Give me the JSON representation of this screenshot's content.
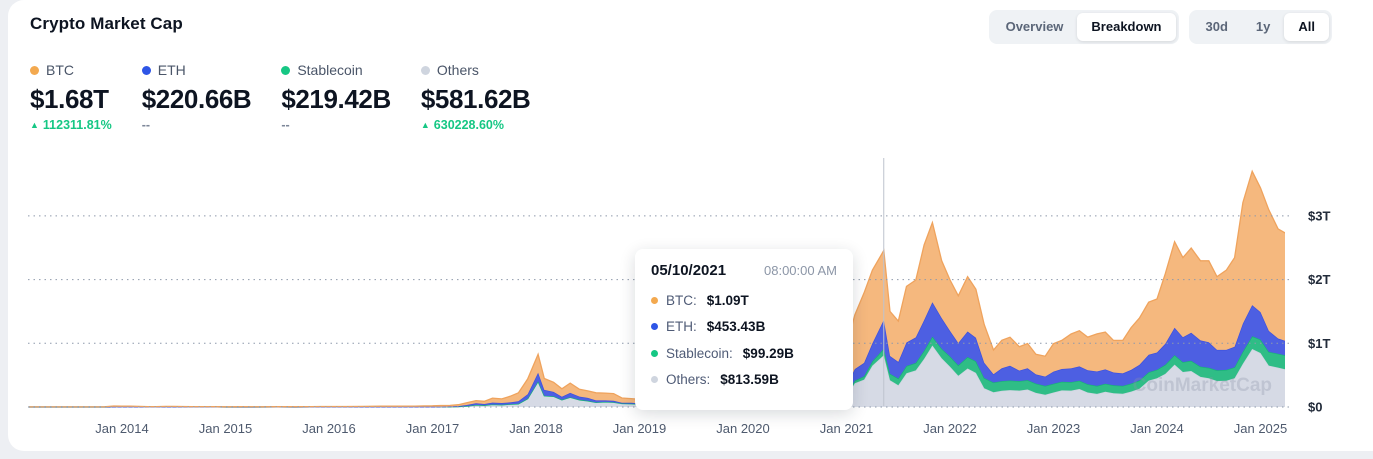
{
  "header": {
    "title": "Crypto Market Cap"
  },
  "view_toggle": {
    "overview": "Overview",
    "breakdown": "Breakdown",
    "selected": "Breakdown"
  },
  "range_toggle": {
    "d30": "30d",
    "y1": "1y",
    "all": "All",
    "selected": "All"
  },
  "stats": [
    {
      "id": "btc",
      "label": "BTC",
      "value": "$1.68T",
      "change": "112311.81%",
      "direction": "up",
      "color": "#f3a94f"
    },
    {
      "id": "eth",
      "label": "ETH",
      "value": "$220.66B",
      "change": "--",
      "direction": "none",
      "color": "#2e55e6"
    },
    {
      "id": "stablecoin",
      "label": "Stablecoin",
      "value": "$219.42B",
      "change": "--",
      "direction": "none",
      "color": "#16c784"
    },
    {
      "id": "others",
      "label": "Others",
      "value": "$581.62B",
      "change": "630228.60%",
      "direction": "up",
      "color": "#cfd5df"
    }
  ],
  "tooltip": {
    "date": "05/10/2021",
    "time": "08:00:00 AM",
    "rows": [
      {
        "id": "btc",
        "label": "BTC:",
        "value": "$1.09T",
        "color": "#f3a94f"
      },
      {
        "id": "eth",
        "label": "ETH:",
        "value": "$453.43B",
        "color": "#2e55e6"
      },
      {
        "id": "stablecoin",
        "label": "Stablecoin:",
        "value": "$99.29B",
        "color": "#16c784"
      },
      {
        "id": "others",
        "label": "Others:",
        "value": "$813.59B",
        "color": "#cfd5df"
      }
    ]
  },
  "chart_data": {
    "type": "area",
    "stacked": true,
    "unit": "billion USD",
    "watermark": "CoinMarketCap",
    "crosshair": {
      "date": "05/10/2021",
      "time": "08:00:00 AM",
      "year": 2021.36
    },
    "y_axis": {
      "ylim": [
        0,
        3950
      ],
      "grid": "dotted",
      "position": "right",
      "ticks": [
        {
          "value": 0,
          "label": "$0"
        },
        {
          "value": 1000,
          "label": "$1T"
        },
        {
          "value": 2000,
          "label": "$2T"
        },
        {
          "value": 3000,
          "label": "$3T"
        }
      ]
    },
    "x_axis": {
      "range_years": [
        2013.1,
        2025.27
      ],
      "ticks": [
        {
          "year": 2014,
          "label": "Jan 2014"
        },
        {
          "year": 2015,
          "label": "Jan 2015"
        },
        {
          "year": 2016,
          "label": "Jan 2016"
        },
        {
          "year": 2017,
          "label": "Jan 2017"
        },
        {
          "year": 2018,
          "label": "Jan 2018"
        },
        {
          "year": 2019,
          "label": "Jan 2019"
        },
        {
          "year": 2020,
          "label": "Jan 2020"
        },
        {
          "year": 2021,
          "label": "Jan 2021"
        },
        {
          "year": 2022,
          "label": "Jan 2022"
        },
        {
          "year": 2023,
          "label": "Jan 2023"
        },
        {
          "year": 2024,
          "label": "Jan 2024"
        },
        {
          "year": 2025,
          "label": "Jan 2025"
        }
      ]
    },
    "stack_order": [
      "others",
      "stablecoin",
      "eth",
      "btc"
    ],
    "series": [
      {
        "id": "btc",
        "name": "BTC",
        "col": 1,
        "color": "#f5b87e",
        "edge": "#efa35d"
      },
      {
        "id": "eth",
        "name": "ETH",
        "col": 2,
        "color": "#4d5fe2",
        "edge": "#3c50de"
      },
      {
        "id": "stablecoin",
        "name": "Stablecoin",
        "col": 3,
        "color": "#2fbd86",
        "edge": "#17b377"
      },
      {
        "id": "others",
        "name": "Others",
        "col": 4,
        "color": "#d6dae5",
        "edge": "#cdd3e0"
      }
    ],
    "points_format": [
      "year",
      "btc",
      "eth",
      "stablecoin",
      "others"
    ],
    "points": [
      [
        2013.1,
        1.0,
        0,
        0,
        0.1
      ],
      [
        2013.25,
        1.4,
        0,
        0,
        0.2
      ],
      [
        2013.4,
        1.2,
        0,
        0,
        0.2
      ],
      [
        2013.6,
        1.2,
        0,
        0,
        0.2
      ],
      [
        2013.83,
        2.5,
        0,
        0,
        0.5
      ],
      [
        2013.92,
        13.0,
        0,
        0,
        2.8
      ],
      [
        2014.0,
        10.2,
        0,
        0,
        2.5
      ],
      [
        2014.08,
        10.5,
        0,
        0,
        3.2
      ],
      [
        2014.17,
        7.5,
        0,
        0,
        1.9
      ],
      [
        2014.25,
        5.5,
        0,
        0,
        1.3
      ],
      [
        2014.33,
        5.3,
        0,
        0,
        1.2
      ],
      [
        2014.42,
        7.3,
        0,
        0,
        1.5
      ],
      [
        2014.5,
        8.1,
        0,
        0,
        1.6
      ],
      [
        2014.58,
        6.8,
        0,
        0,
        1.4
      ],
      [
        2014.67,
        5.8,
        0,
        0,
        1.2
      ],
      [
        2014.75,
        4.6,
        0,
        0,
        1.0
      ],
      [
        2014.83,
        5.0,
        0,
        0,
        1.0
      ],
      [
        2014.92,
        4.4,
        0,
        0,
        0.9
      ],
      [
        2015.0,
        3.1,
        0,
        0,
        0.7
      ],
      [
        2015.17,
        3.4,
        0,
        0,
        0.7
      ],
      [
        2015.33,
        3.3,
        0,
        0,
        0.6
      ],
      [
        2015.5,
        4.0,
        0,
        0,
        0.8
      ],
      [
        2015.67,
        3.4,
        0.1,
        0,
        0.6
      ],
      [
        2015.83,
        5.2,
        0.1,
        0,
        0.8
      ],
      [
        2015.92,
        6.1,
        0.1,
        0,
        0.9
      ],
      [
        2016.0,
        6.0,
        0.7,
        0,
        0.9
      ],
      [
        2016.17,
        6.3,
        0.9,
        0,
        1.0
      ],
      [
        2016.33,
        7.0,
        0.9,
        0,
        1.3
      ],
      [
        2016.5,
        10.3,
        1.0,
        0,
        1.8
      ],
      [
        2016.67,
        9.7,
        1.1,
        0,
        1.8
      ],
      [
        2016.83,
        11.7,
        0.8,
        0,
        1.9
      ],
      [
        2016.92,
        14.8,
        0.7,
        0,
        2.1
      ],
      [
        2017.0,
        15.5,
        0.8,
        0,
        2.0
      ],
      [
        2017.08,
        18.4,
        1.6,
        0,
        3.5
      ],
      [
        2017.17,
        17.3,
        4.5,
        0,
        3.7
      ],
      [
        2017.25,
        21.9,
        8.4,
        0,
        6.5
      ],
      [
        2017.33,
        37,
        17,
        0.1,
        14
      ],
      [
        2017.42,
        41,
        28,
        0.1,
        31
      ],
      [
        2017.5,
        43,
        21,
        0.2,
        26
      ],
      [
        2017.58,
        70,
        30,
        0.3,
        39
      ],
      [
        2017.67,
        64,
        28,
        0.4,
        34
      ],
      [
        2017.75,
        95,
        29,
        0.5,
        43
      ],
      [
        2017.83,
        130,
        42,
        0.7,
        49
      ],
      [
        2017.92,
        240,
        70,
        1.2,
        130
      ],
      [
        2018.02,
        290,
        135,
        2.5,
        400
      ],
      [
        2018.08,
        180,
        90,
        2.7,
        175
      ],
      [
        2018.17,
        150,
        70,
        2.8,
        165
      ],
      [
        2018.25,
        125,
        48,
        2.6,
        110
      ],
      [
        2018.33,
        155,
        68,
        2.7,
        150
      ],
      [
        2018.42,
        115,
        50,
        2.8,
        110
      ],
      [
        2018.5,
        110,
        45,
        2.9,
        95
      ],
      [
        2018.58,
        120,
        30,
        2.9,
        70
      ],
      [
        2018.67,
        115,
        23,
        2.8,
        78
      ],
      [
        2018.75,
        112,
        23,
        2.9,
        72
      ],
      [
        2018.83,
        75,
        12,
        3.0,
        52
      ],
      [
        2018.92,
        66,
        14,
        3.2,
        48
      ],
      [
        2019.0,
        63,
        12,
        3.3,
        42
      ],
      [
        2019.08,
        68,
        14,
        3.5,
        44
      ],
      [
        2019.17,
        71,
        14,
        3.6,
        50
      ],
      [
        2019.25,
        95,
        17,
        3.8,
        62
      ],
      [
        2019.33,
        152,
        27,
        4.2,
        66
      ],
      [
        2019.42,
        200,
        32,
        4.5,
        92
      ],
      [
        2019.5,
        185,
        23,
        4.8,
        76
      ],
      [
        2019.58,
        180,
        20,
        4.9,
        54
      ],
      [
        2019.67,
        150,
        19,
        5.0,
        44
      ],
      [
        2019.75,
        150,
        19,
        5.1,
        45
      ],
      [
        2019.83,
        135,
        16,
        5.2,
        42
      ],
      [
        2019.92,
        130,
        15,
        5.3,
        38
      ],
      [
        2020.0,
        155,
        20,
        5.6,
        47
      ],
      [
        2020.08,
        165,
        26,
        6.0,
        60
      ],
      [
        2020.17,
        110,
        15,
        7.5,
        26
      ],
      [
        2020.25,
        135,
        21,
        9.5,
        42
      ],
      [
        2020.33,
        165,
        23,
        10.5,
        49
      ],
      [
        2020.42,
        170,
        26,
        11.5,
        60
      ],
      [
        2020.5,
        170,
        31,
        13.5,
        63
      ],
      [
        2020.58,
        215,
        44,
        15.5,
        80
      ],
      [
        2020.67,
        195,
        40,
        17.5,
        83
      ],
      [
        2020.75,
        250,
        44,
        20,
        72
      ],
      [
        2020.83,
        340,
        68,
        23,
        85
      ],
      [
        2020.92,
        540,
        83,
        26,
        106
      ],
      [
        2021.0,
        620,
        140,
        33,
        152
      ],
      [
        2021.08,
        850,
        180,
        43,
        372
      ],
      [
        2021.17,
        1100,
        210,
        52,
        430
      ],
      [
        2021.25,
        1150,
        280,
        68,
        650
      ],
      [
        2021.36,
        1090,
        453.43,
        99.29,
        813.59
      ],
      [
        2021.42,
        700,
        280,
        101,
        420
      ],
      [
        2021.5,
        640,
        260,
        108,
        340
      ],
      [
        2021.58,
        880,
        370,
        113,
        530
      ],
      [
        2021.67,
        900,
        400,
        118,
        575
      ],
      [
        2021.75,
        1180,
        480,
        128,
        755
      ],
      [
        2021.83,
        1250,
        540,
        140,
        965
      ],
      [
        2021.92,
        900,
        480,
        150,
        765
      ],
      [
        2022.0,
        800,
        400,
        160,
        635
      ],
      [
        2022.08,
        740,
        350,
        165,
        490
      ],
      [
        2022.17,
        860,
        400,
        180,
        605
      ],
      [
        2022.25,
        760,
        370,
        182,
        535
      ],
      [
        2022.33,
        600,
        240,
        160,
        295
      ],
      [
        2022.42,
        380,
        130,
        155,
        230
      ],
      [
        2022.5,
        440,
        200,
        152,
        255
      ],
      [
        2022.58,
        450,
        230,
        151,
        265
      ],
      [
        2022.67,
        375,
        165,
        149,
        258
      ],
      [
        2022.75,
        390,
        185,
        147,
        275
      ],
      [
        2022.83,
        315,
        145,
        145,
        222
      ],
      [
        2022.92,
        320,
        145,
        140,
        192
      ],
      [
        2023.0,
        440,
        190,
        138,
        228
      ],
      [
        2023.08,
        450,
        200,
        136,
        260
      ],
      [
        2023.17,
        540,
        215,
        133,
        258
      ],
      [
        2023.25,
        560,
        225,
        131,
        282
      ],
      [
        2023.33,
        520,
        220,
        129,
        228
      ],
      [
        2023.42,
        590,
        225,
        127,
        205
      ],
      [
        2023.5,
        585,
        225,
        126,
        240
      ],
      [
        2023.58,
        505,
        200,
        125,
        216
      ],
      [
        2023.67,
        520,
        195,
        124,
        208
      ],
      [
        2023.75,
        665,
        215,
        125,
        242
      ],
      [
        2023.83,
        735,
        245,
        128,
        288
      ],
      [
        2023.92,
        825,
        275,
        130,
        415
      ],
      [
        2024.0,
        840,
        270,
        135,
        450
      ],
      [
        2024.08,
        1100,
        330,
        142,
        520
      ],
      [
        2024.17,
        1350,
        430,
        150,
        665
      ],
      [
        2024.25,
        1250,
        390,
        155,
        550
      ],
      [
        2024.33,
        1330,
        440,
        160,
        565
      ],
      [
        2024.42,
        1250,
        410,
        162,
        473
      ],
      [
        2024.5,
        1280,
        400,
        165,
        450
      ],
      [
        2024.58,
        1150,
        320,
        168,
        408
      ],
      [
        2024.67,
        1250,
        315,
        170,
        412
      ],
      [
        2024.75,
        1400,
        320,
        175,
        450
      ],
      [
        2024.83,
        1900,
        440,
        190,
        680
      ],
      [
        2024.92,
        2100,
        490,
        200,
        910
      ],
      [
        2025.0,
        1950,
        430,
        212,
        848
      ],
      [
        2025.08,
        1900,
        330,
        215,
        650
      ],
      [
        2025.17,
        1720,
        240,
        218,
        618
      ],
      [
        2025.27,
        1680,
        220.66,
        219.42,
        581.62
      ]
    ]
  }
}
